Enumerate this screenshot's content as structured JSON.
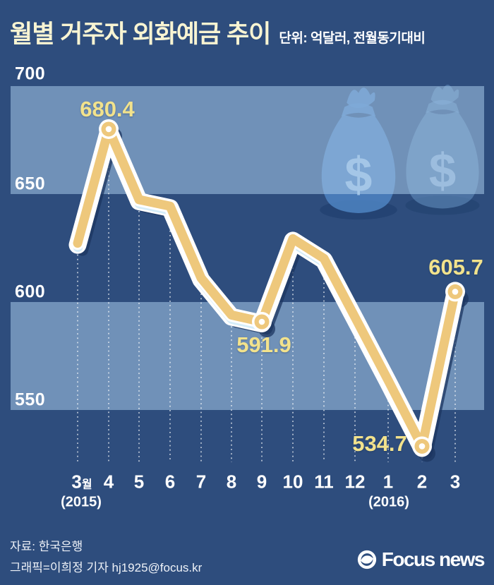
{
  "header": {
    "title": "월별 거주자 외화예금 추이",
    "unit": "단위: 억달러, 전월동기대비"
  },
  "chart_data": {
    "type": "line",
    "title": "월별 거주자 외화예금 추이",
    "unit_label": "단위: 억달러, 전월동기대비",
    "categories": [
      "3",
      "4",
      "5",
      "6",
      "7",
      "8",
      "9",
      "10",
      "11",
      "12",
      "1",
      "2",
      "3"
    ],
    "month_suffix": "월",
    "year_start": "(2015)",
    "year_end": "(2016)",
    "values": [
      628,
      680.4,
      648,
      645,
      612,
      595,
      591.9,
      630,
      621,
      594,
      565,
      534.7,
      605.7
    ],
    "labeled_points": [
      {
        "index": 1,
        "text": "680.4"
      },
      {
        "index": 6,
        "text": "591.9"
      },
      {
        "index": 11,
        "text": "534.7"
      },
      {
        "index": 12,
        "text": "605.7"
      }
    ],
    "y_ticks": [
      "700",
      "650",
      "600",
      "550"
    ],
    "ylim": [
      520,
      710
    ],
    "grid": "dotted-vertical-per-point",
    "legend": "none",
    "line_color": "#eec87c",
    "halo_color": "#d5edf9",
    "value_label_color": "#f2e28c",
    "band_color": "#6e93be",
    "background_color": "#2e4d7d",
    "shaded_value_bands": [
      "650-700",
      "550-600"
    ]
  },
  "decor": {
    "left_money_bag_icon": "money-bag-with-dollar-sign",
    "right_money_bag_icon": "money-bag-with-dollar-sign",
    "dollar_sign": "$"
  },
  "footer": {
    "source": "자료: 한국은행",
    "credit": "그래픽=이희정 기자 hj1925@focus.kr",
    "logo_text": "Focus news"
  }
}
